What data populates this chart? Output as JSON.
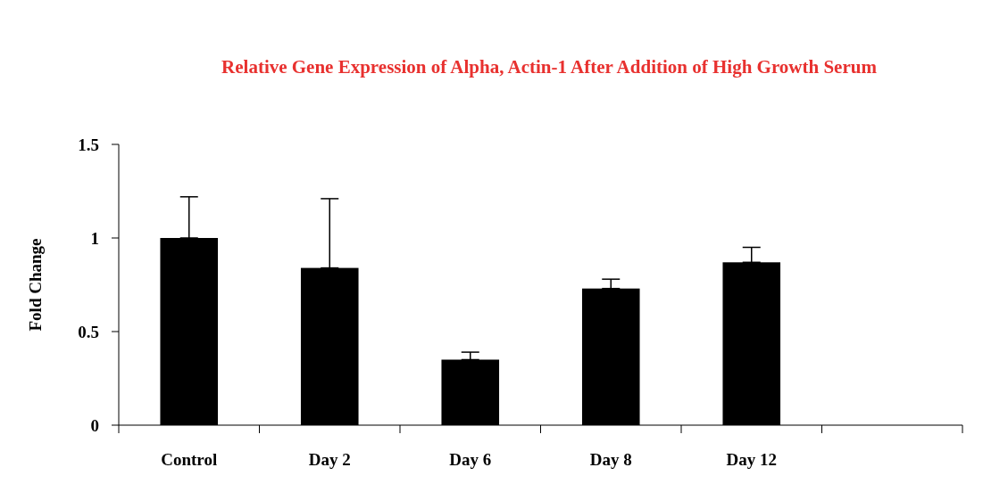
{
  "chart_data": {
    "type": "bar",
    "title": "Relative Gene Expression of Alpha, Actin-1 After Addition of High Growth Serum",
    "ylabel": "Fold Change",
    "categories": [
      "Control",
      "Day 2",
      "Day 6",
      "Day 8",
      "Day 12",
      null
    ],
    "values": [
      1.0,
      0.84,
      0.35,
      0.73,
      0.87,
      null
    ],
    "errors": [
      [
        1.0,
        1.22
      ],
      [
        0.84,
        1.21
      ],
      [
        0.35,
        0.39
      ],
      [
        0.73,
        0.78
      ],
      [
        0.87,
        0.95
      ],
      null
    ],
    "color": "#000000",
    "ylim": [
      0,
      1.5
    ],
    "yticks": [
      0,
      0.5,
      1,
      1.5
    ],
    "grid": false
  }
}
